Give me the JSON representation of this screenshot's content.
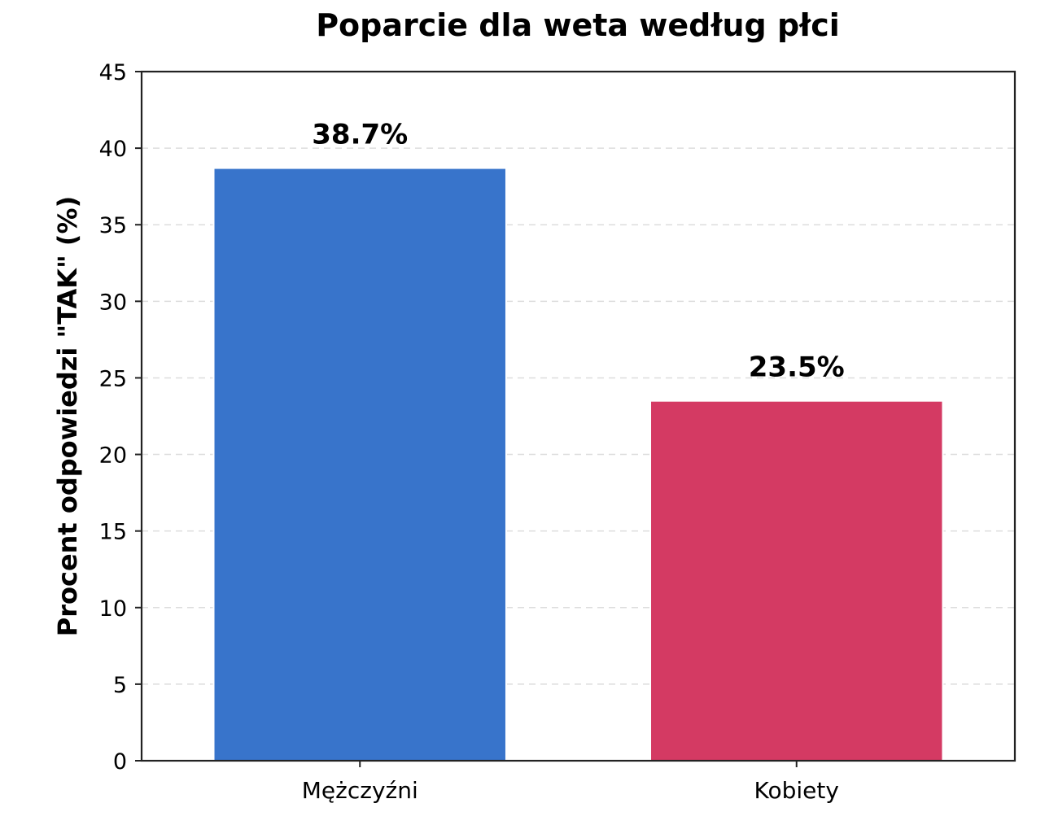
{
  "chart_data": {
    "type": "bar",
    "title": "Poparcie dla weta według płci",
    "xlabel": "",
    "ylabel": "Procent odpowiedzi \"TAK\" (%)",
    "categories": [
      "Mężczyźni",
      "Kobiety"
    ],
    "values": [
      38.7,
      23.5
    ],
    "data_labels": [
      "38.7%",
      "23.5%"
    ],
    "colors": [
      "#3874CB",
      "#D43A63"
    ],
    "ylim": [
      0,
      45
    ],
    "yticks": [
      0,
      5,
      10,
      15,
      20,
      25,
      30,
      35,
      40,
      45
    ],
    "grid": "y-dashed",
    "legend": "none"
  }
}
